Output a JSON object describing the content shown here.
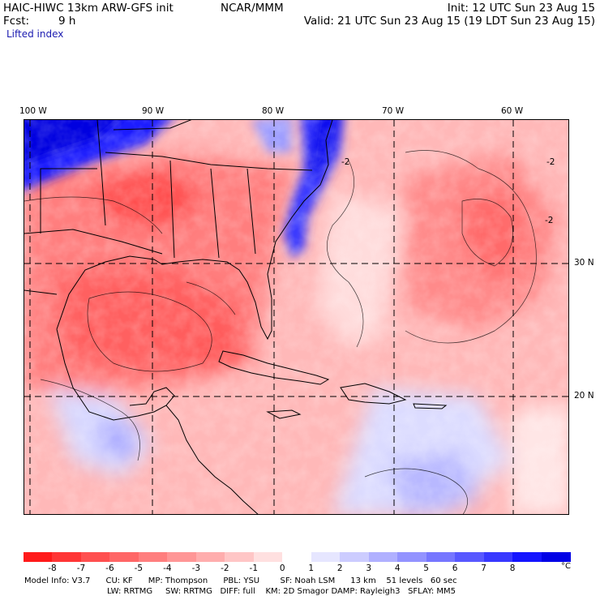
{
  "header": {
    "model": "HAIC-HIWC 13km ARW-GFS init",
    "org": "NCAR/MMM",
    "fcst_label": "Fcst:",
    "fcst_value": "9 h",
    "init": "Init: 12 UTC Sun 23 Aug 15",
    "valid": "Valid: 21 UTC Sun 23 Aug 15 (19 LDT Sun 23 Aug 15)",
    "field": "Lifted index"
  },
  "axes": {
    "lon_labels": [
      "100 W",
      "90 W",
      "80 W",
      "70 W",
      "60 W"
    ],
    "lat_labels": [
      "30 N",
      "20 N"
    ]
  },
  "contour_labels": [
    "-2",
    "-2",
    "-2"
  ],
  "colorbar": {
    "unit": "°C",
    "ticks": [
      "-8",
      "-7",
      "-6",
      "-5",
      "-4",
      "-3",
      "-2",
      "-1",
      "0",
      "1",
      "2",
      "3",
      "4",
      "5",
      "6",
      "7",
      "8"
    ],
    "colors": [
      "#ff1a1a",
      "#ff3535",
      "#ff4f4f",
      "#ff6666",
      "#ff7e7e",
      "#ff9696",
      "#ffadad",
      "#ffc6c6",
      "#ffe0e0",
      "#ffffff",
      "#e6e6ff",
      "#ccccff",
      "#b0b0ff",
      "#9393ff",
      "#7676ff",
      "#5858ff",
      "#3838ff",
      "#1414ff",
      "#0000e6"
    ]
  },
  "model_info": {
    "line1": "Model Info: V3.7      CU: KF      MP: Thompson      PBL: YSU        SF: Noah LSM      13 km    51 levels   60 sec",
    "line2": "LW: RRTMG     SW: RRTMG   DIFF: full    KM: 2D Smagor DAMP: Rayleigh3   SFLAY: MM5"
  }
}
